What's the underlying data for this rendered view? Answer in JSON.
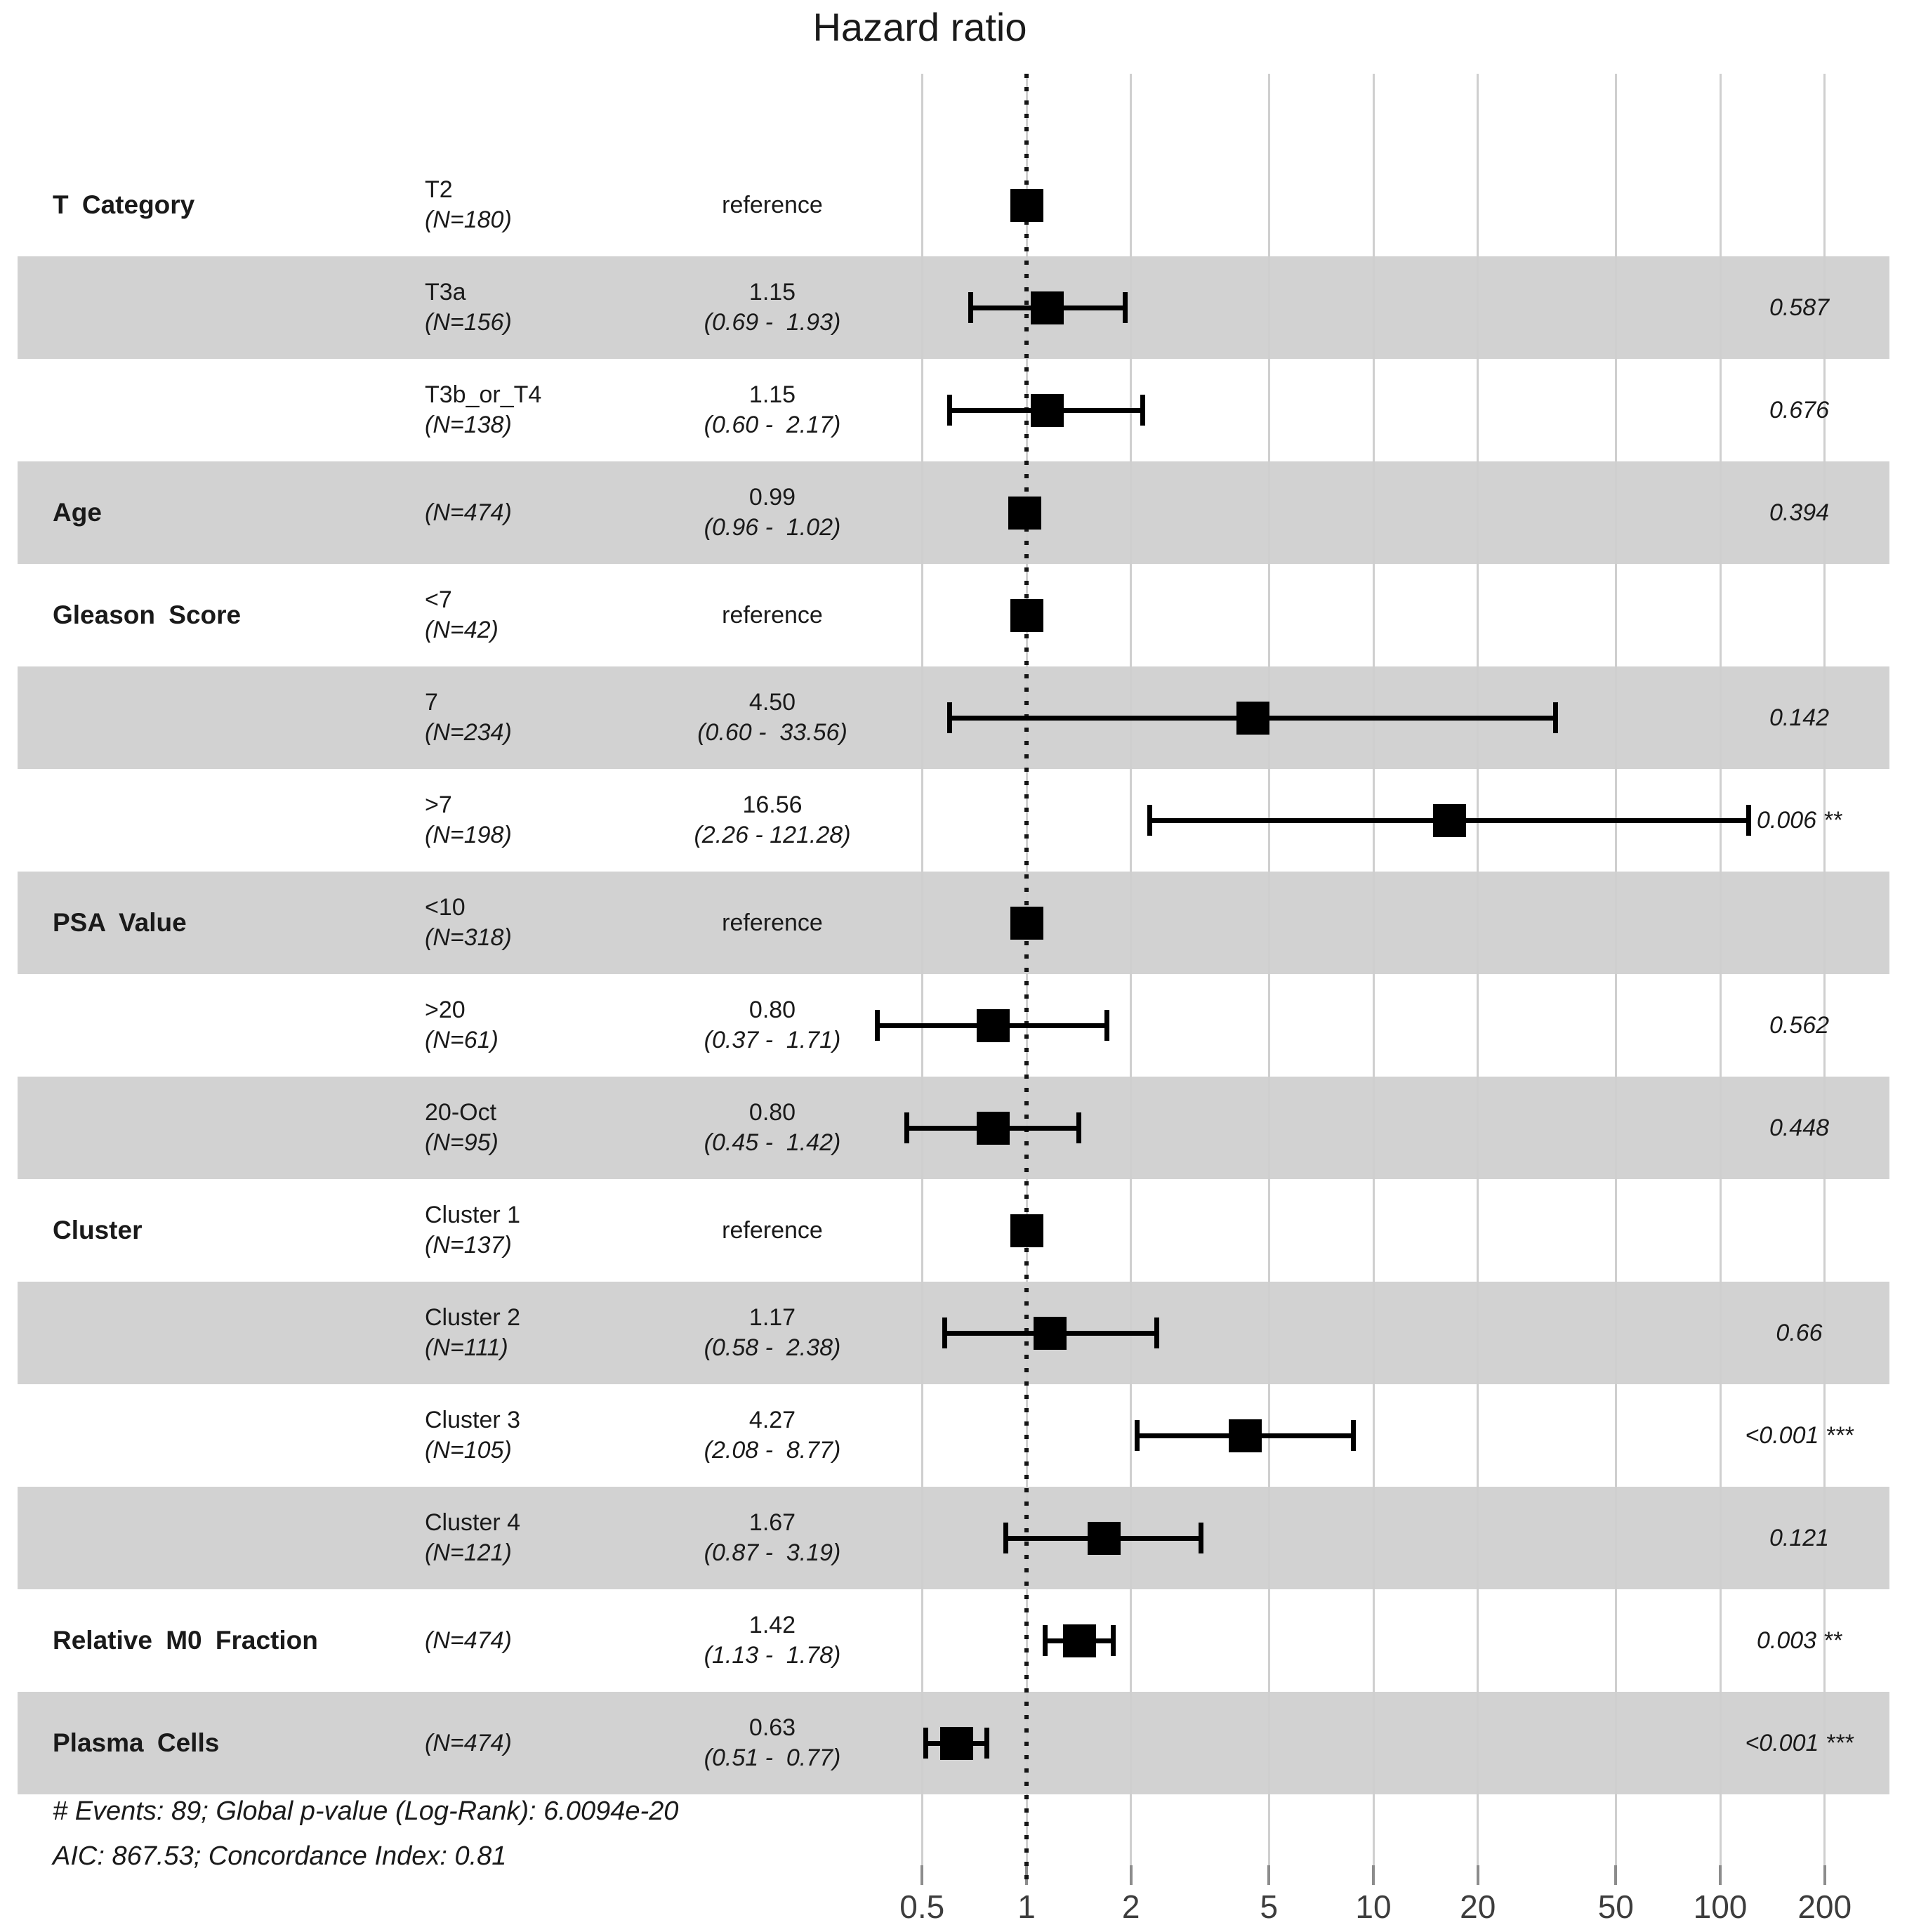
{
  "colors": {
    "band": "#d2d2d2",
    "marker": "#000000",
    "grid": "#cfcfcf",
    "tick": "#8c8c8c",
    "reference_line": "#151515",
    "text": "#1a1a1a",
    "tick_label": "#3d3d3d"
  },
  "chart_data": {
    "type": "forest",
    "title": "Hazard ratio",
    "xlabel": "",
    "xscale": "log",
    "xlim": [
      0.4,
      300
    ],
    "reference_line": 1,
    "grid": true,
    "footnote1": "# Events: 89; Global p-value (Log-Rank): 6.0094e-20",
    "footnote2": "AIC: 867.53; Concordance Index: 0.81",
    "axis": {
      "ticks": [
        {
          "value": 0.5,
          "label": "0.5"
        },
        {
          "value": 1,
          "label": "1"
        },
        {
          "value": 2,
          "label": "2"
        },
        {
          "value": 5,
          "label": "5"
        },
        {
          "value": 10,
          "label": "10"
        },
        {
          "value": 20,
          "label": "20"
        },
        {
          "value": 50,
          "label": "50"
        },
        {
          "value": 100,
          "label": "100"
        },
        {
          "value": 200,
          "label": "200"
        }
      ]
    },
    "rows": [
      {
        "group": "T Category",
        "level": "T2",
        "n": "(N=180)",
        "estimate": "reference",
        "ci": "",
        "hr": 1,
        "lo": null,
        "hi": null,
        "p": "",
        "stars": "",
        "shaded": false,
        "reference": true
      },
      {
        "group": "",
        "level": "T3a",
        "n": "(N=156)",
        "estimate": "1.15",
        "ci": "(0.69 -  1.93)",
        "hr": 1.15,
        "lo": 0.69,
        "hi": 1.93,
        "p": "0.587",
        "stars": "",
        "shaded": true,
        "reference": false
      },
      {
        "group": "",
        "level": "T3b_or_T4",
        "n": "(N=138)",
        "estimate": "1.15",
        "ci": "(0.60 -  2.17)",
        "hr": 1.15,
        "lo": 0.6,
        "hi": 2.17,
        "p": "0.676",
        "stars": "",
        "shaded": false,
        "reference": false
      },
      {
        "group": "Age",
        "level": "",
        "n": "(N=474)",
        "estimate": "0.99",
        "ci": "(0.96 -  1.02)",
        "hr": 0.99,
        "lo": 0.96,
        "hi": 1.02,
        "p": "0.394",
        "stars": "",
        "shaded": true,
        "reference": false
      },
      {
        "group": "Gleason Score",
        "level": "<7",
        "n": "(N=42)",
        "estimate": "reference",
        "ci": "",
        "hr": 1,
        "lo": null,
        "hi": null,
        "p": "",
        "stars": "",
        "shaded": false,
        "reference": true
      },
      {
        "group": "",
        "level": "7",
        "n": "(N=234)",
        "estimate": "4.50",
        "ci": "(0.60 -  33.56)",
        "hr": 4.5,
        "lo": 0.6,
        "hi": 33.56,
        "p": "0.142",
        "stars": "",
        "shaded": true,
        "reference": false
      },
      {
        "group": "",
        "level": ">7",
        "n": "(N=198)",
        "estimate": "16.56",
        "ci": "(2.26 - 121.28)",
        "hr": 16.56,
        "lo": 2.26,
        "hi": 121.28,
        "p": "0.006",
        "stars": "**",
        "shaded": false,
        "reference": false
      },
      {
        "group": "PSA Value",
        "level": "<10",
        "n": "(N=318)",
        "estimate": "reference",
        "ci": "",
        "hr": 1,
        "lo": null,
        "hi": null,
        "p": "",
        "stars": "",
        "shaded": true,
        "reference": true
      },
      {
        "group": "",
        "level": ">20",
        "n": "(N=61)",
        "estimate": "0.80",
        "ci": "(0.37 -  1.71)",
        "hr": 0.8,
        "lo": 0.37,
        "hi": 1.71,
        "p": "0.562",
        "stars": "",
        "shaded": false,
        "reference": false
      },
      {
        "group": "",
        "level": "20-Oct",
        "n": "(N=95)",
        "estimate": "0.80",
        "ci": "(0.45 -  1.42)",
        "hr": 0.8,
        "lo": 0.45,
        "hi": 1.42,
        "p": "0.448",
        "stars": "",
        "shaded": true,
        "reference": false
      },
      {
        "group": "Cluster",
        "level": "Cluster 1",
        "n": "(N=137)",
        "estimate": "reference",
        "ci": "",
        "hr": 1,
        "lo": null,
        "hi": null,
        "p": "",
        "stars": "",
        "shaded": false,
        "reference": true
      },
      {
        "group": "",
        "level": "Cluster 2",
        "n": "(N=111)",
        "estimate": "1.17",
        "ci": "(0.58 -  2.38)",
        "hr": 1.17,
        "lo": 0.58,
        "hi": 2.38,
        "p": "0.66",
        "stars": "",
        "shaded": true,
        "reference": false
      },
      {
        "group": "",
        "level": "Cluster 3",
        "n": "(N=105)",
        "estimate": "4.27",
        "ci": "(2.08 -  8.77)",
        "hr": 4.27,
        "lo": 2.08,
        "hi": 8.77,
        "p": "<0.001",
        "stars": "***",
        "shaded": false,
        "reference": false
      },
      {
        "group": "",
        "level": "Cluster 4",
        "n": "(N=121)",
        "estimate": "1.67",
        "ci": "(0.87 -  3.19)",
        "hr": 1.67,
        "lo": 0.87,
        "hi": 3.19,
        "p": "0.121",
        "stars": "",
        "shaded": true,
        "reference": false
      },
      {
        "group": "Relative M0 Fraction",
        "level": "",
        "n": "(N=474)",
        "estimate": "1.42",
        "ci": "(1.13 -  1.78)",
        "hr": 1.42,
        "lo": 1.13,
        "hi": 1.78,
        "p": "0.003",
        "stars": "**",
        "shaded": false,
        "reference": false
      },
      {
        "group": "Plasma Cells",
        "level": "",
        "n": "(N=474)",
        "estimate": "0.63",
        "ci": "(0.51 -  0.77)",
        "hr": 0.63,
        "lo": 0.51,
        "hi": 0.77,
        "p": "<0.001",
        "stars": "***",
        "shaded": true,
        "reference": false
      }
    ]
  }
}
